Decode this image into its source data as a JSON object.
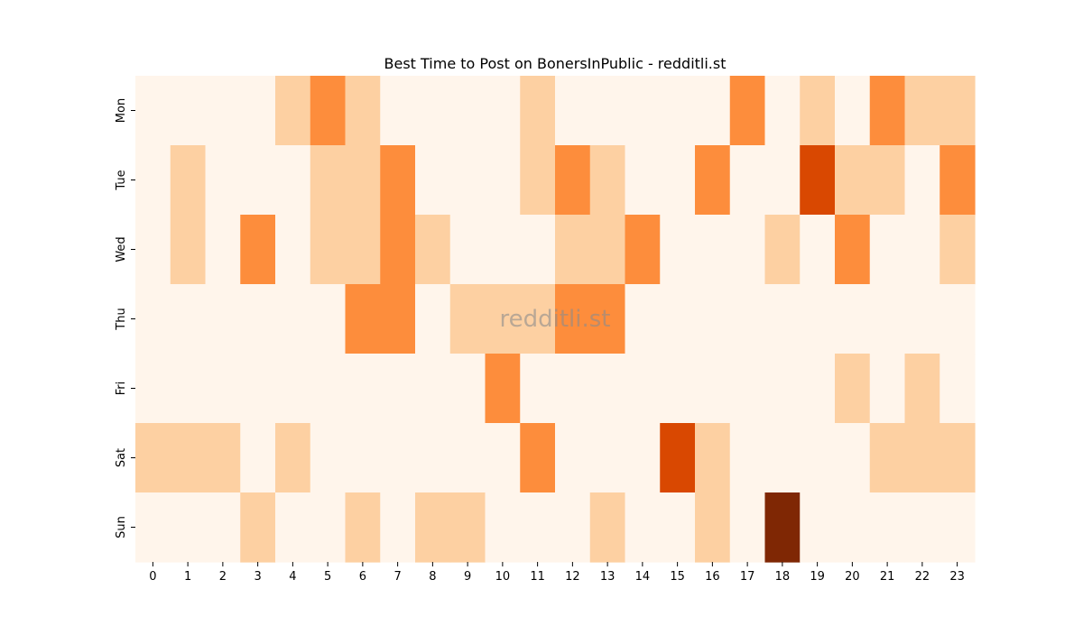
{
  "chart_data": {
    "type": "heatmap",
    "title": "Best Time to Post on BonersInPublic - redditli.st",
    "xlabel": "",
    "ylabel": "",
    "watermark": "redditli.st",
    "x": [
      "0",
      "1",
      "2",
      "3",
      "4",
      "5",
      "6",
      "7",
      "8",
      "9",
      "10",
      "11",
      "12",
      "13",
      "14",
      "15",
      "16",
      "17",
      "18",
      "19",
      "20",
      "21",
      "22",
      "23"
    ],
    "y": [
      "Mon",
      "Tue",
      "Wed",
      "Thu",
      "Fri",
      "Sat",
      "Sun"
    ],
    "values": [
      [
        0,
        0,
        0,
        0,
        1,
        2,
        1,
        0,
        0,
        0,
        0,
        1,
        0,
        0,
        0,
        0,
        0,
        2,
        0,
        1,
        0,
        2,
        1,
        1
      ],
      [
        0,
        1,
        0,
        0,
        0,
        1,
        1,
        2,
        0,
        0,
        0,
        1,
        2,
        1,
        0,
        0,
        2,
        0,
        0,
        3,
        1,
        1,
        0,
        2
      ],
      [
        0,
        1,
        0,
        2,
        0,
        1,
        1,
        2,
        1,
        0,
        0,
        0,
        1,
        1,
        2,
        0,
        0,
        0,
        1,
        0,
        2,
        0,
        0,
        1
      ],
      [
        0,
        0,
        0,
        0,
        0,
        0,
        2,
        2,
        0,
        1,
        1,
        1,
        2,
        2,
        0,
        0,
        0,
        0,
        0,
        0,
        0,
        0,
        0,
        0
      ],
      [
        0,
        0,
        0,
        0,
        0,
        0,
        0,
        0,
        0,
        0,
        2,
        0,
        0,
        0,
        0,
        0,
        0,
        0,
        0,
        0,
        1,
        0,
        1,
        0
      ],
      [
        1,
        1,
        1,
        0,
        1,
        0,
        0,
        0,
        0,
        0,
        0,
        2,
        0,
        0,
        0,
        3,
        1,
        0,
        0,
        0,
        0,
        1,
        1,
        1
      ],
      [
        0,
        0,
        0,
        1,
        0,
        0,
        1,
        0,
        1,
        1,
        0,
        0,
        0,
        1,
        0,
        0,
        1,
        0,
        4,
        0,
        0,
        0,
        0,
        0
      ]
    ],
    "colormap": [
      "#fff5eb",
      "#fdd0a2",
      "#fd8d3c",
      "#d94801",
      "#7f2704"
    ],
    "legend": "none",
    "grid": false
  }
}
